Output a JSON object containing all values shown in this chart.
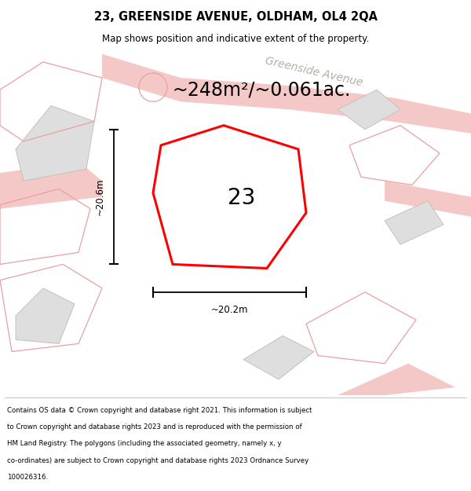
{
  "title": "23, GREENSIDE AVENUE, OLDHAM, OL4 2QA",
  "subtitle": "Map shows position and indicative extent of the property.",
  "area_text": "~248m²/~0.061ac.",
  "label_number": "23",
  "dim_height": "~20.6m",
  "dim_width": "~20.2m",
  "street_label": "Greenside Avenue",
  "footer": "Contains OS data © Crown copyright and database right 2021. This information is subject to Crown copyright and database rights 2023 and is reproduced with the permission of HM Land Registry. The polygons (including the associated geometry, namely x, y co-ordinates) are subject to Crown copyright and database rights 2023 Ordnance Survey 100026316.",
  "bg_color": "#f0eeeb",
  "main_plot_color": "#ff0000",
  "building_fill": "#dedede",
  "building_edge": "#c8c0b8",
  "road_fill": "#f5c8c8",
  "road_edge": "#e8a0a0",
  "title_fontsize": 10.5,
  "subtitle_fontsize": 8.5,
  "area_fontsize": 17,
  "label_fontsize": 20,
  "street_fontsize": 10,
  "footer_fontsize": 6.2,
  "dim_fontsize": 8.5
}
